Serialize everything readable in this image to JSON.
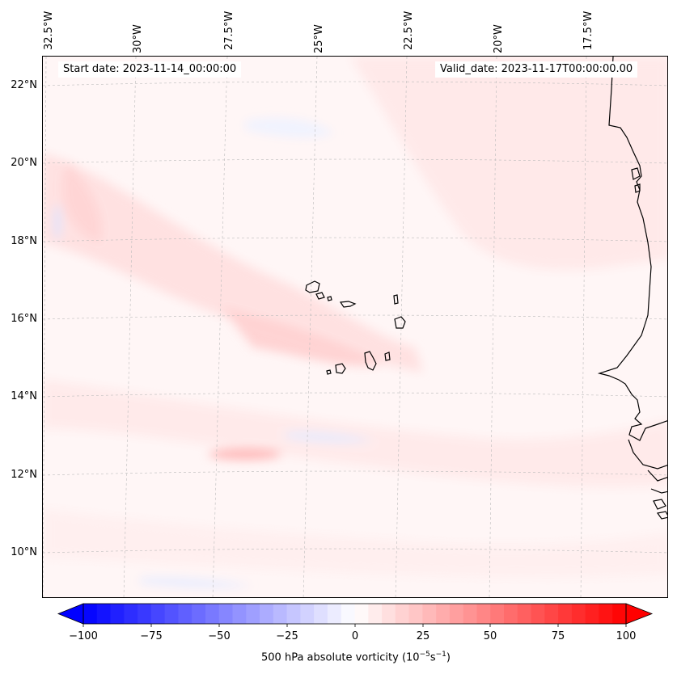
{
  "title_start": "Start date: 2023-11-14_00:00:00",
  "title_valid": "Valid_date: 2023-11-17T00:00:00.00",
  "longitude_labels": [
    "32.5°W",
    "30°W",
    "27.5°W",
    "25°W",
    "22.5°W",
    "20°W",
    "17.5°W"
  ],
  "latitude_labels": [
    "22°N",
    "20°N",
    "18°N",
    "16°N",
    "14°N",
    "12°N",
    "10°N"
  ],
  "colorbar": {
    "ticks": [
      "−100",
      "−75",
      "−50",
      "−25",
      "0",
      "25",
      "50",
      "75",
      "100"
    ],
    "title_main": "500 hPa absolute vorticity (10",
    "title_exp1": "−5",
    "title_mid": "s",
    "title_exp2": "−1",
    "title_end": ")",
    "min": -100,
    "max": 100,
    "levels": 41,
    "colors": {
      "low": "#0000ff",
      "mid": "#ffffff",
      "high": "#ff0000"
    }
  },
  "colors": {
    "coastline": "#000000",
    "gridline": "#bbbbbb",
    "background_field": "#fff6f6"
  }
}
